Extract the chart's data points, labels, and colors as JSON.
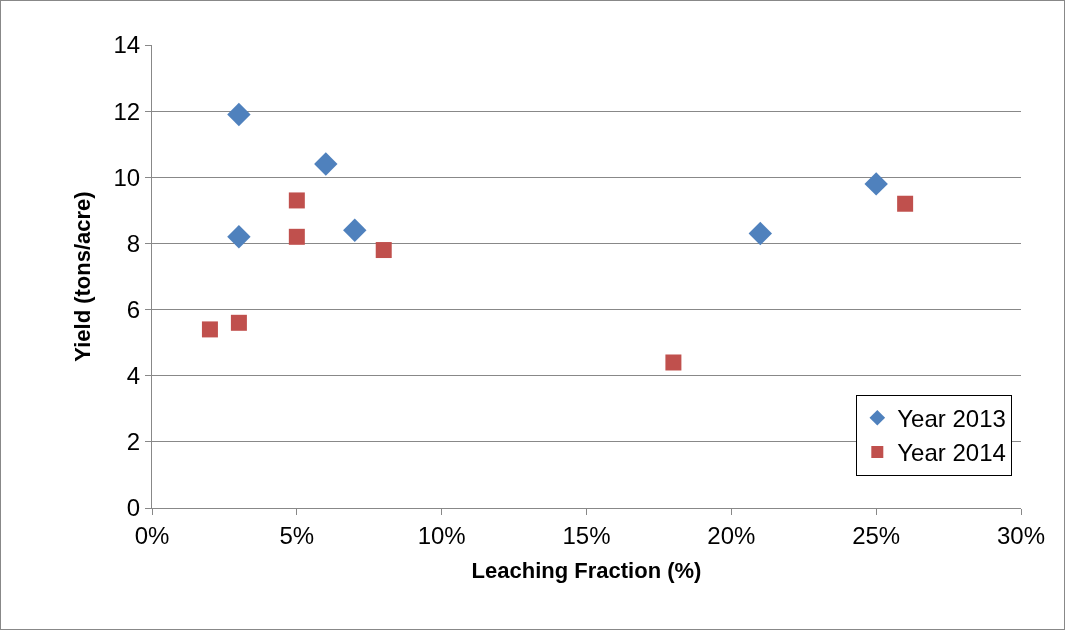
{
  "chart_data": {
    "type": "scatter",
    "xlabel": "Leaching Fraction (%)",
    "ylabel": "Yield (tons/acre)",
    "xlim": [
      0,
      30
    ],
    "xticks": [
      {
        "value": 0,
        "label": "0%"
      },
      {
        "value": 5,
        "label": "5%"
      },
      {
        "value": 10,
        "label": "10%"
      },
      {
        "value": 15,
        "label": "15%"
      },
      {
        "value": 20,
        "label": "20%"
      },
      {
        "value": 25,
        "label": "25%"
      },
      {
        "value": 30,
        "label": "30%"
      }
    ],
    "ylim": [
      0,
      14
    ],
    "yticks": [
      0,
      2,
      4,
      6,
      8,
      10,
      12,
      14
    ],
    "grid": "y",
    "legend": "bottom right",
    "series": [
      {
        "name": "Year 2013",
        "color": "#4f81bd",
        "marker": "diamond",
        "x": [
          3,
          6,
          3,
          7,
          21,
          25
        ],
        "values": [
          11.9,
          10.4,
          8.2,
          8.4,
          8.3,
          9.8
        ]
      },
      {
        "name": "Year 2014",
        "color": "#c0504d",
        "marker": "square",
        "x": [
          2,
          3,
          5,
          5,
          8,
          18,
          26
        ],
        "values": [
          5.4,
          5.6,
          9.3,
          8.2,
          7.8,
          4.4,
          9.2
        ]
      }
    ]
  }
}
